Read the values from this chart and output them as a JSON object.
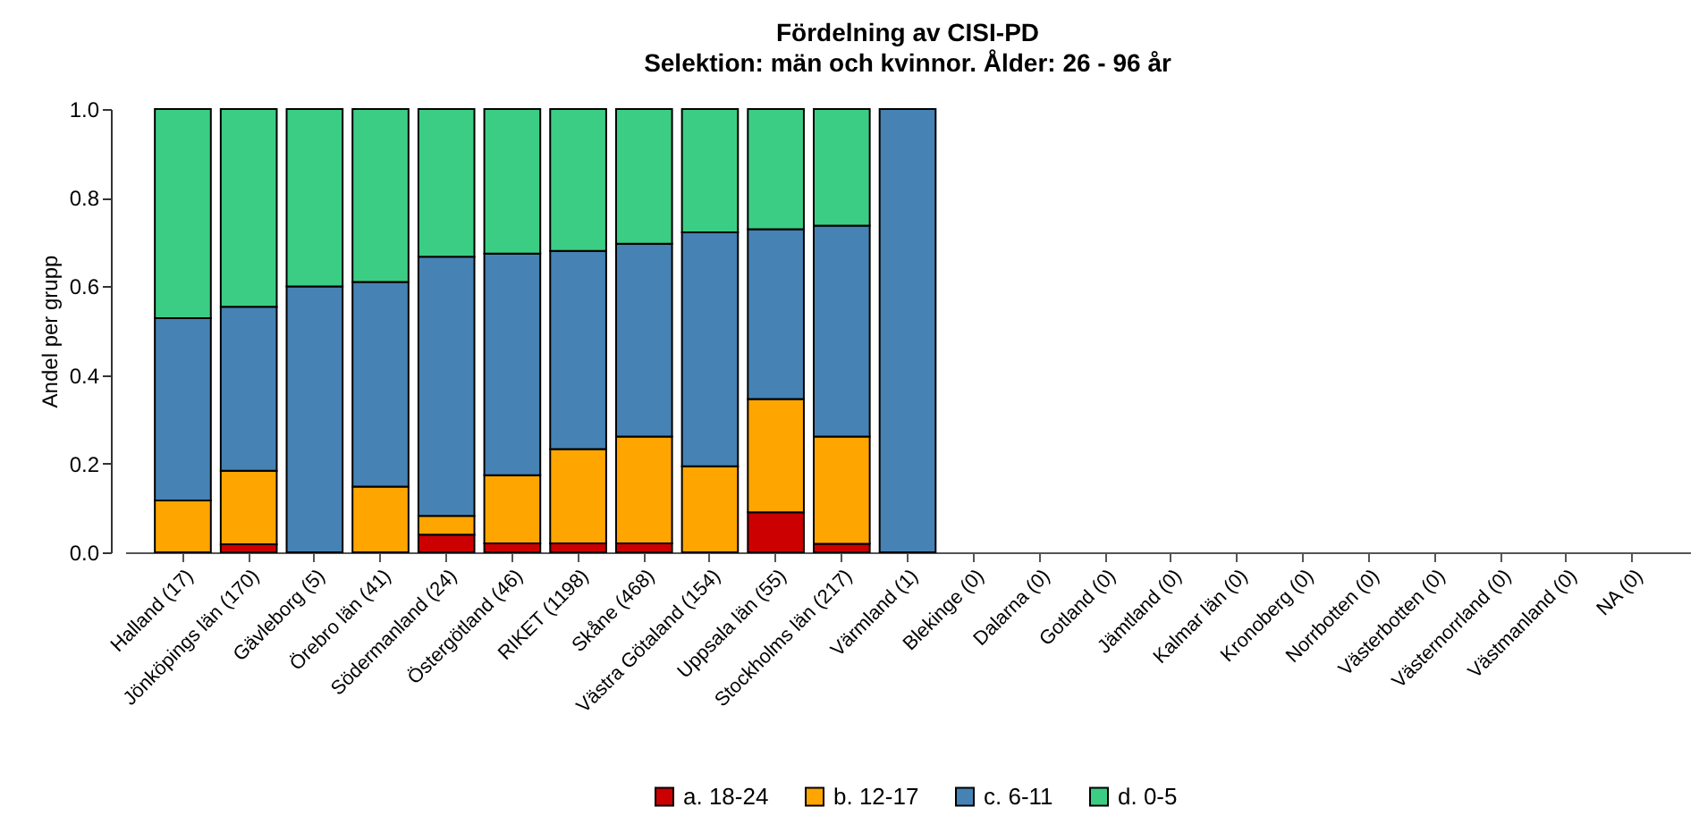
{
  "chart_data": {
    "type": "bar",
    "title": "Fördelning av CISI-PD",
    "subtitle": "Selektion: män och kvinnor. Ålder: 26 - 96 år",
    "ylabel": "Andel per grupp",
    "stacked": true,
    "legend": "bottom",
    "grid": false,
    "categories": [
      "Halland (17)",
      "Jönköpings län (170)",
      "Gävleborg (5)",
      "Örebro län (41)",
      "Södermanland (24)",
      "Östergötland (46)",
      "RIKET (1198)",
      "Skåne (468)",
      "Västra Götaland (154)",
      "Uppsala län (55)",
      "Stockholms län (217)",
      "Värmland (1)",
      "Blekinge (0)",
      "Dalarna (0)",
      "Gotland (0)",
      "Jämtland (0)",
      "Kalmar län (0)",
      "Kronoberg (0)",
      "Norrbotten (0)",
      "Västerbotten (0)",
      "Västernorrland (0)",
      "Västmanland (0)",
      "NA (0)"
    ],
    "ylim": [
      0,
      1
    ],
    "yticks": [
      {
        "value": 0,
        "label": "0.0"
      },
      0.2,
      0.4,
      0.6,
      0.8,
      {
        "value": 1,
        "label": "1.0"
      }
    ],
    "series": [
      {
        "name": "a. 18-24",
        "color": "#cc0000",
        "values": [
          null,
          0.018,
          null,
          null,
          0.04,
          0.02,
          0.02,
          0.02,
          null,
          0.09,
          0.019,
          null,
          null,
          null,
          null,
          null,
          null,
          null,
          null,
          null,
          null,
          null,
          null
        ]
      },
      {
        "name": "b. 12-17",
        "color": "#ffa500",
        "values": [
          0.117,
          0.166,
          null,
          0.148,
          0.042,
          0.154,
          0.213,
          0.241,
          0.194,
          0.256,
          0.242,
          null,
          null,
          null,
          null,
          null,
          null,
          null,
          null,
          null,
          null,
          null,
          null
        ]
      },
      {
        "name": "c. 6-11",
        "color": "#4682b4",
        "values": [
          0.411,
          0.37,
          0.6,
          0.462,
          0.585,
          0.5,
          0.447,
          0.435,
          0.528,
          0.383,
          0.476,
          1,
          null,
          null,
          null,
          null,
          null,
          null,
          null,
          null,
          null,
          null,
          null
        ]
      },
      {
        "name": "d. 0-5",
        "color": "#3ccd84",
        "values": [
          0.472,
          0.446,
          0.4,
          0.39,
          0.333,
          0.326,
          0.32,
          0.304,
          0.278,
          0.271,
          0.263,
          null,
          null,
          null,
          null,
          null,
          null,
          null,
          null,
          null,
          null,
          null,
          null
        ]
      }
    ]
  }
}
